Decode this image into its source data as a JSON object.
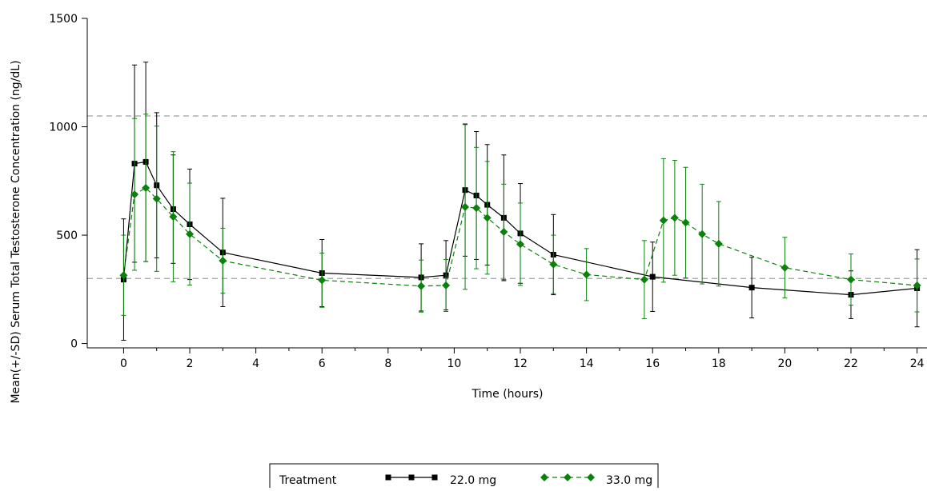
{
  "chart_data": {
    "type": "line",
    "xlabel": "Time (hours)",
    "ylabel": "Mean(+/-SD) Serum Total Testosterone Concentration (ng/dL)",
    "xlim": [
      -1.1,
      24.3
    ],
    "ylim": [
      -20,
      1500
    ],
    "x_ticks": [
      0,
      2,
      4,
      6,
      8,
      10,
      12,
      14,
      16,
      18,
      20,
      22,
      24
    ],
    "x_ticks_labels": [
      "0",
      "2",
      "4",
      "6",
      "8",
      "10",
      "12",
      "14",
      "16",
      "18",
      "20",
      "22",
      "24"
    ],
    "y_ticks": [
      0,
      500,
      1000,
      1500
    ],
    "y_ticks_labels": [
      "0",
      "500",
      "1000",
      "1500"
    ],
    "reference_lines": [
      300,
      1050
    ],
    "grid": false,
    "legend": {
      "title": "Treatment",
      "position": "bottom"
    },
    "series": [
      {
        "name": "22.0 mg",
        "color": "#000000",
        "marker": "square",
        "line_style": "solid",
        "x": [
          0,
          0.33,
          0.67,
          1,
          1.5,
          2,
          3,
          6,
          9,
          9.75,
          10.33,
          10.67,
          11,
          11.5,
          12,
          13,
          16,
          19,
          22,
          24
        ],
        "y": [
          295,
          830,
          838,
          730,
          620,
          550,
          420,
          325,
          305,
          315,
          708,
          683,
          640,
          580,
          508,
          410,
          308,
          258,
          225,
          255
        ],
        "err": [
          280,
          455,
          460,
          335,
          250,
          255,
          250,
          155,
          155,
          160,
          305,
          295,
          278,
          290,
          230,
          185,
          160,
          140,
          110,
          178
        ]
      },
      {
        "name": "33.0 mg",
        "color": "#0a820a",
        "marker": "diamond",
        "line_style": "dashed",
        "x": [
          0,
          0.33,
          0.67,
          1,
          1.5,
          2,
          3,
          6,
          9,
          9.75,
          10.33,
          10.67,
          11,
          11.5,
          12,
          13,
          14,
          15.75,
          16.33,
          16.67,
          17,
          17.5,
          18,
          20,
          22,
          24
        ],
        "y": [
          315,
          688,
          718,
          668,
          585,
          505,
          382,
          292,
          265,
          268,
          630,
          625,
          580,
          515,
          458,
          365,
          318,
          295,
          568,
          580,
          558,
          505,
          460,
          350,
          295,
          268
        ],
        "err": [
          185,
          350,
          340,
          335,
          300,
          235,
          150,
          125,
          120,
          120,
          380,
          280,
          260,
          220,
          190,
          135,
          120,
          180,
          285,
          265,
          255,
          230,
          195,
          140,
          118,
          122
        ]
      }
    ]
  }
}
